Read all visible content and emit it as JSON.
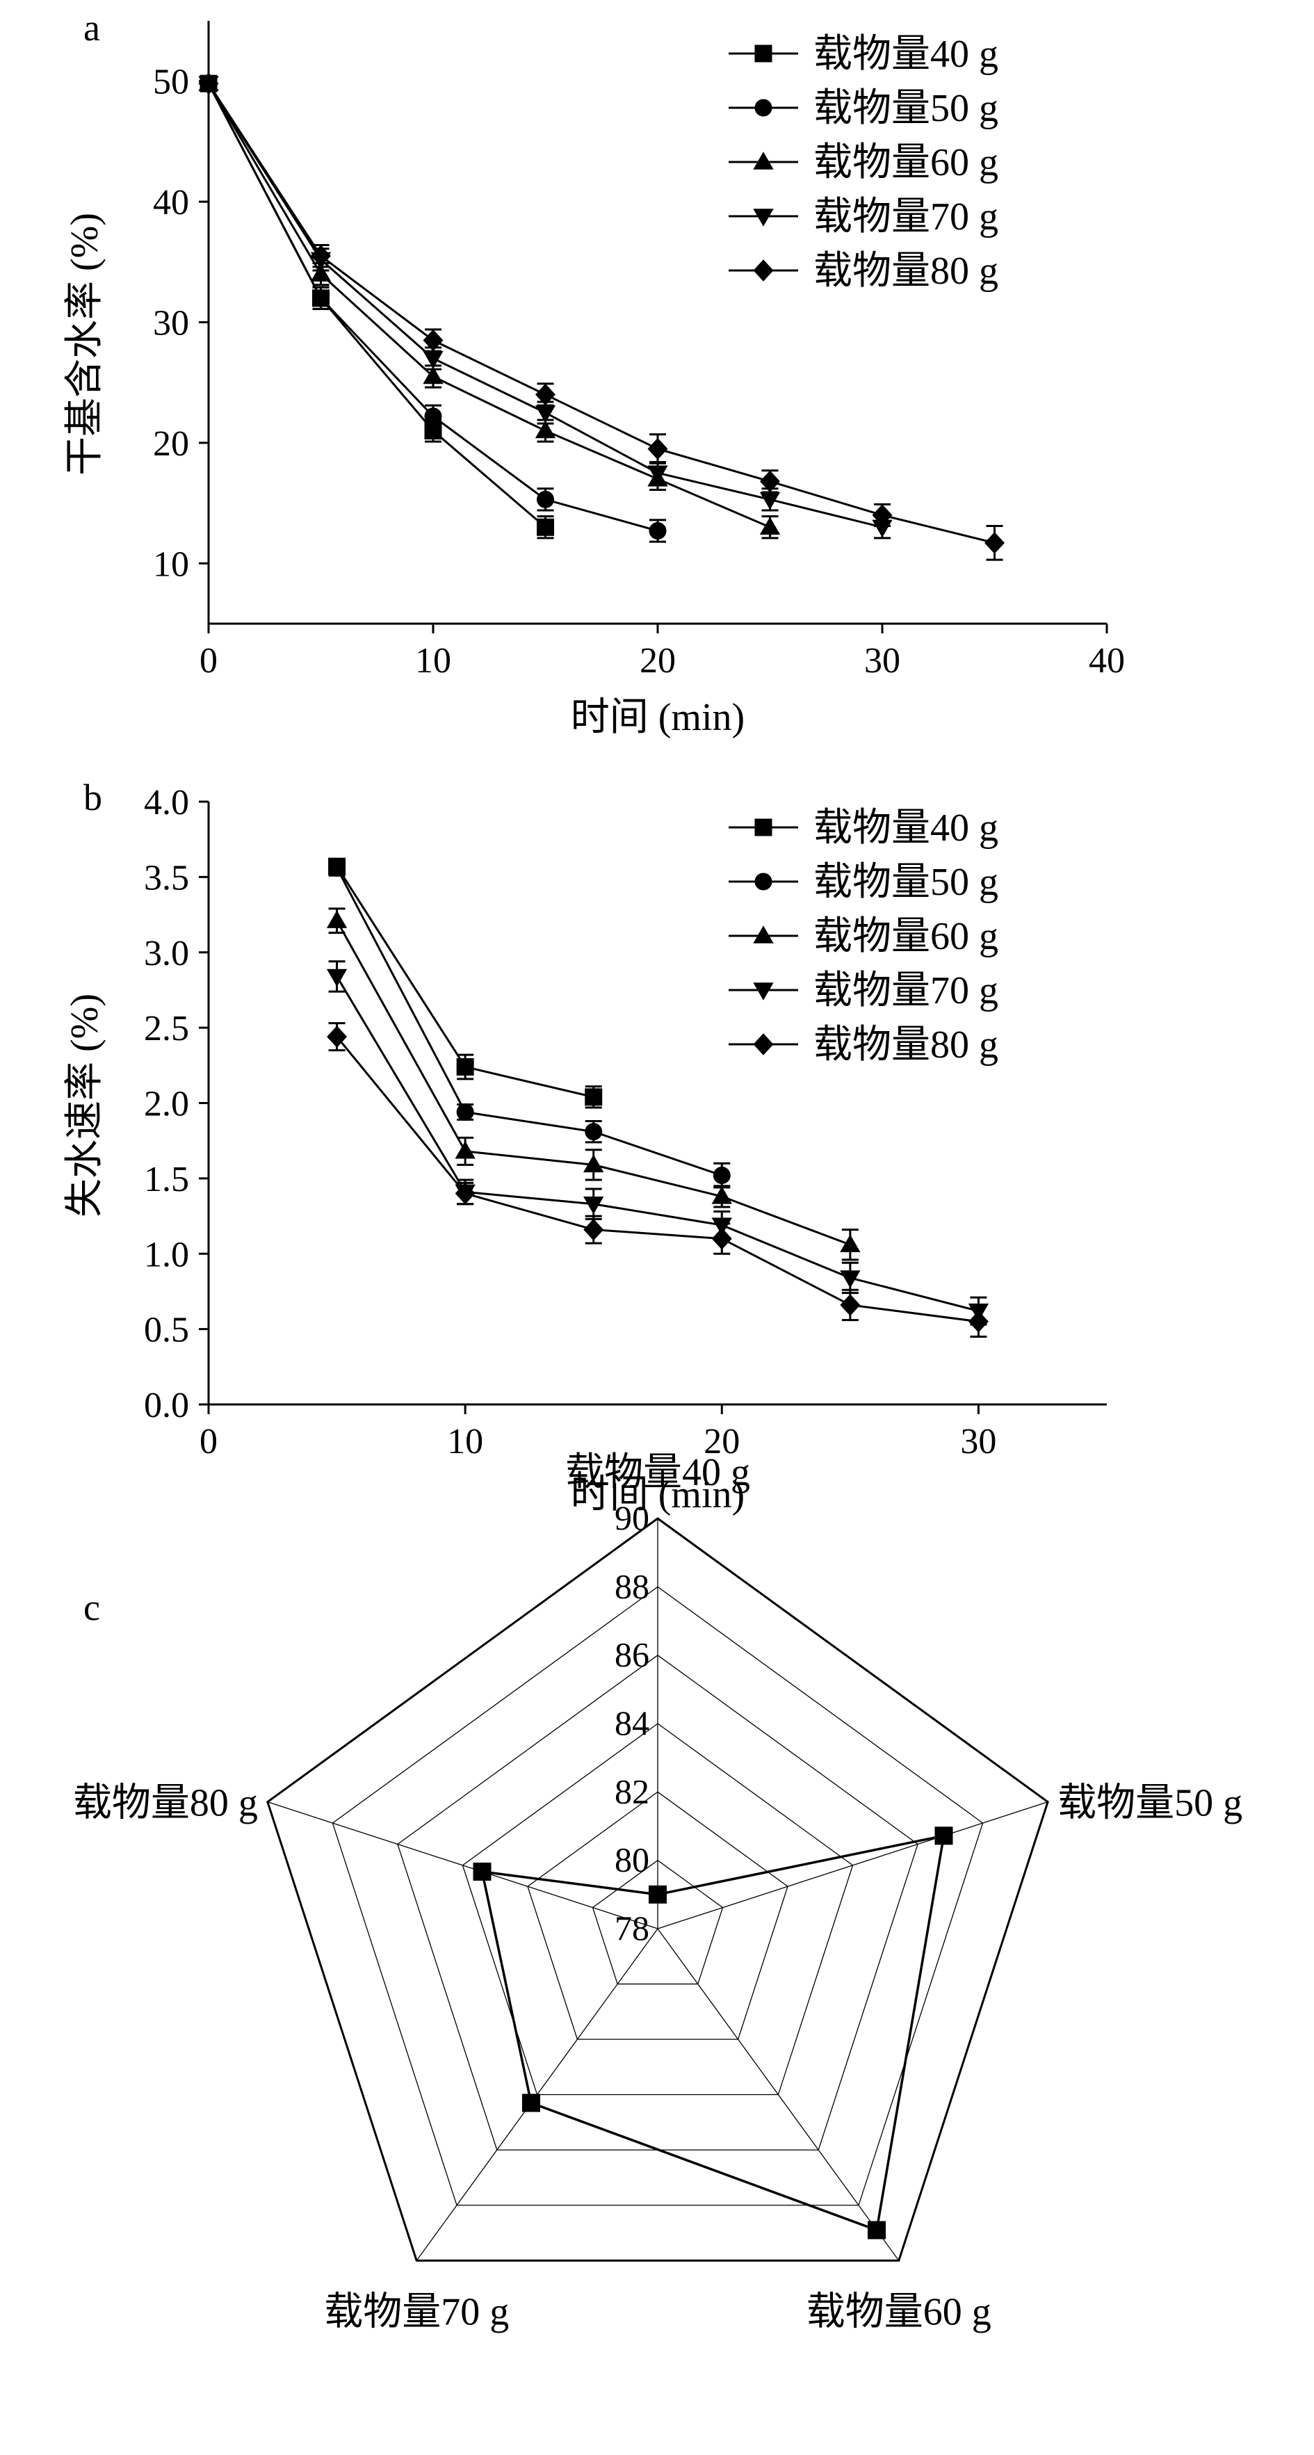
{
  "chart_data": [
    {
      "panel": "a",
      "type": "line",
      "xlabel": "时间 (min)",
      "ylabel": "干基含水率 (%)",
      "xlim": [
        0,
        40
      ],
      "ylim": [
        5,
        55
      ],
      "xticks": [
        0,
        10,
        20,
        30,
        40
      ],
      "yticks": [
        10,
        20,
        30,
        40,
        50
      ],
      "legend_position": "top-right",
      "series": [
        {
          "name": "载物量40 g",
          "marker": "square",
          "x": [
            0,
            5,
            10,
            15
          ],
          "y": [
            49.8,
            32.0,
            21.0,
            13.0
          ],
          "err": [
            0.5,
            0.9,
            0.9,
            0.9
          ]
        },
        {
          "name": "载物量50 g",
          "marker": "circle",
          "x": [
            0,
            5,
            10,
            15,
            20
          ],
          "y": [
            49.8,
            32.0,
            22.2,
            15.3,
            12.7
          ],
          "err": [
            0.5,
            0.9,
            0.9,
            0.9,
            0.9
          ]
        },
        {
          "name": "载物量60 g",
          "marker": "triangle-up",
          "x": [
            0,
            5,
            10,
            15,
            20,
            25
          ],
          "y": [
            49.8,
            34.0,
            25.5,
            21.0,
            17.0,
            13.0
          ],
          "err": [
            0.5,
            0.9,
            0.9,
            0.9,
            0.9,
            0.9
          ]
        },
        {
          "name": "载物量70 g",
          "marker": "triangle-down",
          "x": [
            0,
            5,
            10,
            15,
            20,
            25,
            30
          ],
          "y": [
            49.8,
            35.2,
            27.0,
            22.5,
            17.5,
            15.3,
            13.0
          ],
          "err": [
            0.5,
            0.9,
            0.9,
            0.9,
            0.9,
            0.9,
            0.9
          ]
        },
        {
          "name": "载物量80 g",
          "marker": "diamond",
          "x": [
            0,
            5,
            10,
            15,
            20,
            25,
            30,
            35
          ],
          "y": [
            49.8,
            35.5,
            28.5,
            24.0,
            19.5,
            16.8,
            14.0,
            11.7
          ],
          "err": [
            0.5,
            0.9,
            0.9,
            0.9,
            1.2,
            0.9,
            0.9,
            1.4
          ]
        }
      ]
    },
    {
      "panel": "b",
      "type": "line",
      "xlabel": "时间 (min)",
      "ylabel": "失水速率 (%)",
      "xlim": [
        0,
        35
      ],
      "ylim": [
        0,
        4
      ],
      "xticks": [
        0,
        10,
        20,
        30
      ],
      "yticks": [
        "0.0",
        "0.5",
        "1.0",
        "1.5",
        "2.0",
        "2.5",
        "3.0",
        "3.5",
        "4.0"
      ],
      "legend_position": "top-right",
      "series": [
        {
          "name": "载物量40 g",
          "marker": "square",
          "x": [
            5,
            10,
            15
          ],
          "y": [
            3.57,
            2.24,
            2.04
          ],
          "err": [
            0.05,
            0.08,
            0.07
          ]
        },
        {
          "name": "载物量50 g",
          "marker": "circle",
          "x": [
            5,
            10,
            15,
            20
          ],
          "y": [
            3.56,
            1.94,
            1.81,
            1.52
          ],
          "err": [
            0.05,
            0.05,
            0.07,
            0.08
          ]
        },
        {
          "name": "载物量60 g",
          "marker": "triangle-up",
          "x": [
            5,
            10,
            15,
            20,
            25
          ],
          "y": [
            3.21,
            1.68,
            1.59,
            1.38,
            1.06
          ],
          "err": [
            0.08,
            0.09,
            0.1,
            0.07,
            0.1
          ]
        },
        {
          "name": "载物量70 g",
          "marker": "triangle-down",
          "x": [
            5,
            10,
            15,
            20,
            25,
            30
          ],
          "y": [
            2.84,
            1.41,
            1.33,
            1.19,
            0.84,
            0.62
          ],
          "err": [
            0.1,
            0.08,
            0.1,
            0.09,
            0.1,
            0.09
          ]
        },
        {
          "name": "载物量80 g",
          "marker": "diamond",
          "x": [
            5,
            10,
            15,
            20,
            25,
            30
          ],
          "y": [
            2.44,
            1.4,
            1.16,
            1.1,
            0.66,
            0.55
          ],
          "err": [
            0.09,
            0.07,
            0.09,
            0.1,
            0.1,
            0.1
          ]
        }
      ]
    },
    {
      "panel": "c",
      "type": "radar",
      "axes": [
        "载物量40 g",
        "载物量50 g",
        "载物量60 g",
        "载物量70 g",
        "载物量80 g"
      ],
      "values": [
        79.0,
        86.8,
        88.9,
        84.3,
        83.4
      ],
      "rmin": 78,
      "rmax": 90,
      "rticks": [
        78,
        80,
        82,
        84,
        86,
        88,
        90
      ]
    }
  ]
}
